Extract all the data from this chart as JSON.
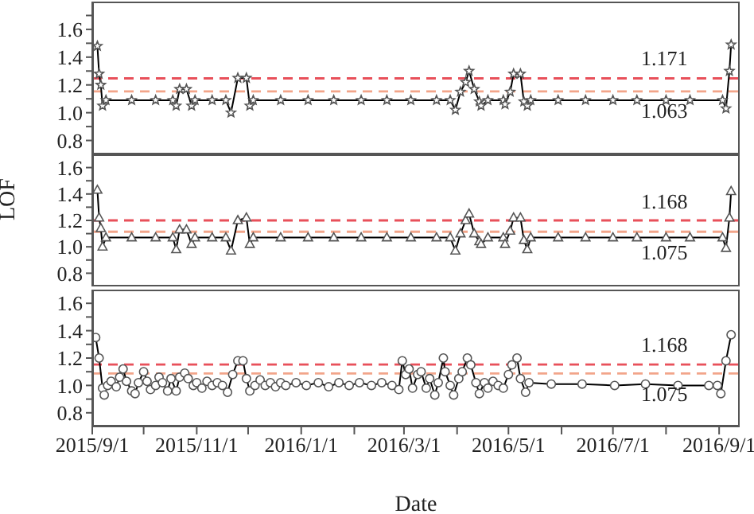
{
  "chart_data": [
    {
      "type": "line",
      "marker": "star",
      "tick_labels": "y",
      "xlim": [
        "2015-09-01",
        "2016-09-13"
      ],
      "ylim": [
        0.7,
        1.8
      ],
      "yticks": [
        {
          "value": 0.8,
          "label": "0.8"
        },
        {
          "value": 0.9,
          "label": null
        },
        {
          "value": 1.0,
          "label": "1.0"
        },
        {
          "value": 1.1,
          "label": null
        },
        {
          "value": 1.2,
          "label": "1.2"
        },
        {
          "value": 1.3,
          "label": null
        },
        {
          "value": 1.4,
          "label": "1.4"
        },
        {
          "value": 1.5,
          "label": null
        },
        {
          "value": 1.6,
          "label": "1.6"
        },
        {
          "value": 1.7,
          "label": null
        }
      ],
      "x": [
        "2015-09-04",
        "2015-09-05",
        "2015-09-06",
        "2015-09-07",
        "2015-09-09",
        "2015-09-24",
        "2015-10-08",
        "2015-10-18",
        "2015-10-20",
        "2015-10-22",
        "2015-10-26",
        "2015-10-29",
        "2015-10-31",
        "2015-11-10",
        "2015-11-18",
        "2015-11-21",
        "2015-11-25",
        "2015-11-30",
        "2015-12-02",
        "2015-12-04",
        "2015-12-20",
        "2016-01-05",
        "2016-01-20",
        "2016-02-05",
        "2016-02-20",
        "2016-03-05",
        "2016-03-20",
        "2016-03-28",
        "2016-03-31",
        "2016-04-03",
        "2016-04-06",
        "2016-04-08",
        "2016-04-11",
        "2016-04-14",
        "2016-04-15",
        "2016-04-19",
        "2016-04-28",
        "2016-04-29",
        "2016-05-02",
        "2016-05-04",
        "2016-05-08",
        "2016-05-10",
        "2016-05-12",
        "2016-05-14",
        "2016-05-30",
        "2016-06-15",
        "2016-07-01",
        "2016-07-15",
        "2016-08-01",
        "2016-08-15",
        "2016-09-03",
        "2016-09-05",
        "2016-09-07",
        "2016-09-08"
      ],
      "series": [
        {
          "color": "#000000",
          "values": [
            1.48,
            1.28,
            1.2,
            1.05,
            1.09,
            1.09,
            1.09,
            1.09,
            1.05,
            1.17,
            1.17,
            1.05,
            1.09,
            1.09,
            1.09,
            1.0,
            1.25,
            1.25,
            1.05,
            1.09,
            1.09,
            1.09,
            1.09,
            1.09,
            1.09,
            1.09,
            1.09,
            1.09,
            1.02,
            1.15,
            1.22,
            1.3,
            1.17,
            1.08,
            1.05,
            1.09,
            1.09,
            1.06,
            1.15,
            1.28,
            1.28,
            1.08,
            1.05,
            1.09,
            1.09,
            1.09,
            1.09,
            1.09,
            1.09,
            1.09,
            1.09,
            1.03,
            1.3,
            1.49
          ]
        }
      ],
      "ref_lines": [
        {
          "axis": "y",
          "value": 1.247,
          "color": "#e8505a",
          "line_style": "dashed"
        },
        {
          "axis": "y",
          "value": 1.153,
          "color": "#f2a58a",
          "line_style": "dashed"
        }
      ],
      "annotations": [
        "1.171",
        "1.063"
      ]
    },
    {
      "type": "line",
      "marker": "triangle",
      "tick_labels": "y",
      "ylabel": "LOF",
      "xlim": [
        "2015-09-01",
        "2016-09-13"
      ],
      "ylim": [
        0.7,
        1.7
      ],
      "yticks": [
        {
          "value": 0.8,
          "label": "0.8"
        },
        {
          "value": 0.9,
          "label": null
        },
        {
          "value": 1.0,
          "label": "1.0"
        },
        {
          "value": 1.1,
          "label": null
        },
        {
          "value": 1.2,
          "label": "1.2"
        },
        {
          "value": 1.3,
          "label": null
        },
        {
          "value": 1.4,
          "label": "1.4"
        },
        {
          "value": 1.5,
          "label": null
        },
        {
          "value": 1.6,
          "label": "1.6"
        }
      ],
      "x": [
        "2015-09-04",
        "2015-09-05",
        "2015-09-06",
        "2015-09-07",
        "2015-09-09",
        "2015-09-24",
        "2015-10-08",
        "2015-10-18",
        "2015-10-20",
        "2015-10-22",
        "2015-10-26",
        "2015-10-29",
        "2015-10-31",
        "2015-11-10",
        "2015-11-18",
        "2015-11-21",
        "2015-11-25",
        "2015-11-30",
        "2015-12-02",
        "2015-12-04",
        "2015-12-20",
        "2016-01-05",
        "2016-01-20",
        "2016-02-05",
        "2016-02-20",
        "2016-03-05",
        "2016-03-20",
        "2016-03-28",
        "2016-03-31",
        "2016-04-03",
        "2016-04-06",
        "2016-04-08",
        "2016-04-11",
        "2016-04-14",
        "2016-04-15",
        "2016-04-19",
        "2016-04-28",
        "2016-04-29",
        "2016-05-02",
        "2016-05-04",
        "2016-05-08",
        "2016-05-10",
        "2016-05-12",
        "2016-05-14",
        "2016-05-30",
        "2016-06-15",
        "2016-07-01",
        "2016-07-15",
        "2016-08-01",
        "2016-08-15",
        "2016-09-03",
        "2016-09-05",
        "2016-09-07",
        "2016-09-08"
      ],
      "series": [
        {
          "color": "#000000",
          "values": [
            1.43,
            1.22,
            1.14,
            1.0,
            1.07,
            1.07,
            1.07,
            1.07,
            0.98,
            1.13,
            1.13,
            1.02,
            1.07,
            1.07,
            1.07,
            0.97,
            1.2,
            1.22,
            1.02,
            1.07,
            1.07,
            1.07,
            1.07,
            1.07,
            1.07,
            1.07,
            1.07,
            1.07,
            0.97,
            1.1,
            1.2,
            1.25,
            1.1,
            1.04,
            1.02,
            1.07,
            1.07,
            1.02,
            1.12,
            1.22,
            1.22,
            1.05,
            0.98,
            1.07,
            1.07,
            1.07,
            1.07,
            1.07,
            1.07,
            1.07,
            1.07,
            0.99,
            1.22,
            1.42
          ]
        }
      ],
      "ref_lines": [
        {
          "axis": "y",
          "value": 1.2,
          "color": "#e8505a",
          "line_style": "dashed"
        },
        {
          "axis": "y",
          "value": 1.114,
          "color": "#f2a58a",
          "line_style": "dashed"
        }
      ],
      "annotations": [
        "1.168",
        "1.075"
      ]
    },
    {
      "type": "line",
      "marker": "circle",
      "xlabel": "Date",
      "xlim": [
        "2015-09-01",
        "2016-09-13"
      ],
      "ylim": [
        0.7,
        1.7
      ],
      "yticks": [
        {
          "value": 0.8,
          "label": "0.8"
        },
        {
          "value": 0.9,
          "label": null
        },
        {
          "value": 1.0,
          "label": "1.0"
        },
        {
          "value": 1.1,
          "label": null
        },
        {
          "value": 1.2,
          "label": "1.2"
        },
        {
          "value": 1.3,
          "label": null
        },
        {
          "value": 1.4,
          "label": "1.4"
        },
        {
          "value": 1.5,
          "label": null
        },
        {
          "value": 1.6,
          "label": "1.6"
        }
      ],
      "xticks": [
        {
          "value": "2015-09-01",
          "label": "2015/9/1"
        },
        {
          "value": "2015-10-01",
          "label": null
        },
        {
          "value": "2015-11-01",
          "label": "2015/11/1"
        },
        {
          "value": "2015-12-01",
          "label": null
        },
        {
          "value": "2016-01-01",
          "label": "2016/1/1"
        },
        {
          "value": "2016-02-01",
          "label": null
        },
        {
          "value": "2016-03-01",
          "label": "2016/3/1"
        },
        {
          "value": "2016-04-01",
          "label": null
        },
        {
          "value": "2016-05-01",
          "label": "2016/5/1"
        },
        {
          "value": "2016-06-01",
          "label": null
        },
        {
          "value": "2016-07-01",
          "label": "2016/7/1"
        },
        {
          "value": "2016-08-01",
          "label": null
        },
        {
          "value": "2016-09-01",
          "label": "2016/9/1"
        }
      ],
      "x": [
        "2015-09-03",
        "2015-09-05",
        "2015-09-07",
        "2015-09-08",
        "2015-09-10",
        "2015-09-12",
        "2015-09-15",
        "2015-09-17",
        "2015-09-19",
        "2015-09-21",
        "2015-09-24",
        "2015-09-26",
        "2015-09-28",
        "2015-10-01",
        "2015-10-03",
        "2015-10-05",
        "2015-10-08",
        "2015-10-10",
        "2015-10-12",
        "2015-10-15",
        "2015-10-17",
        "2015-10-20",
        "2015-10-22",
        "2015-10-25",
        "2015-10-27",
        "2015-10-30",
        "2015-11-01",
        "2015-11-04",
        "2015-11-07",
        "2015-11-10",
        "2015-11-13",
        "2015-11-16",
        "2015-11-19",
        "2015-11-22",
        "2015-11-25",
        "2015-11-28",
        "2015-11-30",
        "2015-12-02",
        "2015-12-05",
        "2015-12-08",
        "2015-12-11",
        "2015-12-14",
        "2015-12-17",
        "2015-12-20",
        "2015-12-23",
        "2015-12-29",
        "2016-01-04",
        "2016-01-11",
        "2016-01-17",
        "2016-01-23",
        "2016-01-29",
        "2016-02-04",
        "2016-02-11",
        "2016-02-17",
        "2016-02-23",
        "2016-02-27",
        "2016-02-29",
        "2016-03-02",
        "2016-03-04",
        "2016-03-06",
        "2016-03-09",
        "2016-03-11",
        "2016-03-14",
        "2016-03-16",
        "2016-03-19",
        "2016-03-21",
        "2016-03-24",
        "2016-03-25",
        "2016-03-28",
        "2016-03-30",
        "2016-04-02",
        "2016-04-04",
        "2016-04-07",
        "2016-04-09",
        "2016-04-12",
        "2016-04-14",
        "2016-04-17",
        "2016-04-19",
        "2016-04-22",
        "2016-04-25",
        "2016-04-28",
        "2016-05-01",
        "2016-05-03",
        "2016-05-06",
        "2016-05-08",
        "2016-05-11",
        "2016-05-13",
        "2016-05-26",
        "2016-06-13",
        "2016-07-02",
        "2016-07-20",
        "2016-08-08",
        "2016-08-26",
        "2016-08-31",
        "2016-09-02",
        "2016-09-05",
        "2016-09-08"
      ],
      "series": [
        {
          "color": "#000000",
          "values": [
            1.35,
            1.2,
            0.98,
            0.93,
            1.0,
            1.03,
            0.99,
            1.06,
            1.12,
            1.03,
            0.96,
            0.94,
            1.02,
            1.1,
            1.03,
            0.97,
            1.0,
            1.06,
            1.02,
            0.96,
            1.05,
            0.96,
            1.06,
            1.09,
            1.05,
            1.0,
            1.02,
            0.98,
            1.03,
            1.0,
            1.02,
            1.0,
            0.95,
            1.08,
            1.18,
            1.18,
            1.05,
            0.96,
            1.0,
            1.04,
            1.0,
            1.02,
            0.99,
            1.02,
            1.0,
            1.02,
            1.0,
            1.02,
            0.99,
            1.02,
            1.0,
            1.02,
            1.0,
            1.02,
            1.0,
            0.97,
            1.18,
            1.08,
            1.12,
            0.98,
            1.08,
            1.1,
            0.98,
            1.05,
            0.93,
            1.02,
            1.2,
            1.1,
            1.0,
            0.93,
            1.05,
            1.1,
            1.2,
            1.15,
            1.02,
            0.94,
            1.02,
            0.98,
            1.03,
            1.0,
            0.98,
            1.08,
            1.15,
            1.2,
            1.05,
            0.95,
            1.02,
            1.01,
            1.01,
            1.0,
            1.01,
            1.0,
            1.0,
            1.0,
            0.94,
            1.18,
            1.37
          ]
        }
      ],
      "ref_lines": [
        {
          "axis": "y",
          "value": 1.153,
          "color": "#e8505a",
          "line_style": "dashed"
        },
        {
          "axis": "y",
          "value": 1.087,
          "color": "#f2a58a",
          "line_style": "dashed"
        }
      ],
      "annotations": [
        "1.168",
        "1.075"
      ]
    }
  ]
}
